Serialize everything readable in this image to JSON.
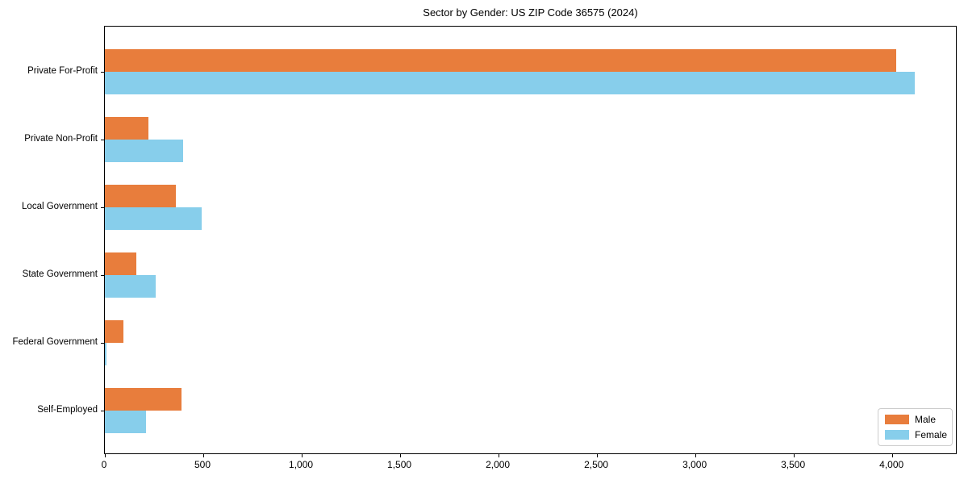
{
  "chart_data": {
    "type": "bar",
    "orientation": "horizontal",
    "title": "Sector by Gender: US ZIP Code 36575 (2024)",
    "categories": [
      "Private For-Profit",
      "Private Non-Profit",
      "Local Government",
      "State Government",
      "Federal Government",
      "Self-Employed"
    ],
    "series": [
      {
        "name": "Male",
        "color": "#e87d3c",
        "values": [
          4018,
          222,
          359,
          161,
          96,
          390
        ]
      },
      {
        "name": "Female",
        "color": "#87ceeb",
        "values": [
          4113,
          398,
          493,
          259,
          7,
          208
        ]
      }
    ],
    "xlabel": "",
    "ylabel": "",
    "xlim": [
      0,
      4323
    ],
    "xticks": [
      0,
      500,
      1000,
      1500,
      2000,
      2500,
      3000,
      3500,
      4000
    ],
    "xtick_labels": [
      "0",
      "500",
      "1,000",
      "1,500",
      "2,000",
      "2,500",
      "3,000",
      "3,500",
      "4,000"
    ],
    "grid": false,
    "legend": {
      "position": "lower right",
      "entries": [
        "Male",
        "Female"
      ]
    },
    "colors": {
      "male": "#e87d3c",
      "female": "#87ceeb",
      "spine": "#000000",
      "legend_border": "#cccccc",
      "background": "#ffffff"
    }
  }
}
